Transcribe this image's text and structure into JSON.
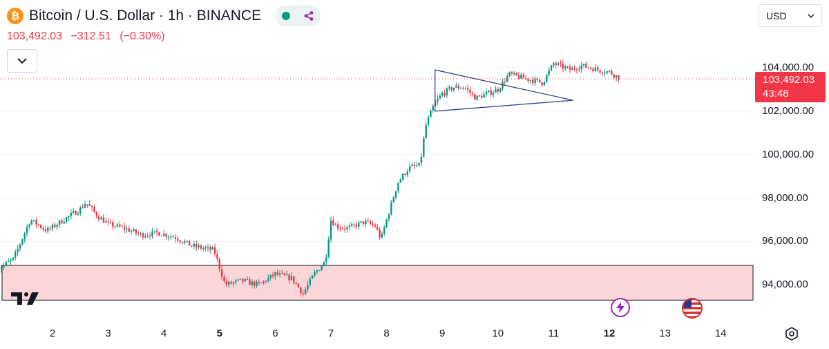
{
  "header": {
    "logo_letter": "₿",
    "title": "Bitcoin / U.S. Dollar · 1h · BINANCE",
    "price": "103,492.03",
    "change": "−312.51",
    "change_pct": "(−0.30%)"
  },
  "currency": {
    "value": "USD"
  },
  "price_tag": {
    "price": "103,492.03",
    "countdown": "43:48"
  },
  "colors": {
    "up": "#089981",
    "down": "#f23645",
    "zone_fill": "#fbd6d9",
    "accent": "#9c27b0"
  },
  "icons": [
    "bitcoin-icon",
    "chevron-down-icon",
    "tradingview-logo",
    "lightning-icon",
    "us-flag-icon",
    "settings-icon"
  ],
  "chart_data": {
    "type": "candlestick",
    "y_axis_labels": [
      "104,000.00",
      "102,000.00",
      "100,000.00",
      "98,000.00",
      "96,000.00",
      "94,000.00"
    ],
    "y_axis_values": [
      104000,
      102000,
      100000,
      98000,
      96000,
      94000
    ],
    "x_axis_labels": [
      "2",
      "3",
      "4",
      "5",
      "6",
      "7",
      "8",
      "9",
      "10",
      "11",
      "12",
      "13",
      "14"
    ],
    "x_axis_bold": [
      "5",
      "12"
    ],
    "last_price": 103492.03,
    "support_zone": {
      "low": 93300,
      "high": 94900
    },
    "triangle": {
      "top_left": 103900,
      "bottom_left": 102000,
      "apex": 102500
    },
    "path": [
      [
        1.0,
        94700
      ],
      [
        1.3,
        95200
      ],
      [
        1.6,
        97000
      ],
      [
        1.9,
        96500
      ],
      [
        2.2,
        97000
      ],
      [
        2.5,
        97500
      ],
      [
        2.6,
        97800
      ],
      [
        2.8,
        97200
      ],
      [
        3.0,
        96800
      ],
      [
        3.3,
        96600
      ],
      [
        3.6,
        96300
      ],
      [
        3.9,
        96400
      ],
      [
        4.2,
        96200
      ],
      [
        4.5,
        95800
      ],
      [
        4.9,
        95600
      ],
      [
        5.0,
        94800
      ],
      [
        5.1,
        94000
      ],
      [
        5.4,
        94200
      ],
      [
        5.7,
        94000
      ],
      [
        6.0,
        94500
      ],
      [
        6.3,
        94300
      ],
      [
        6.5,
        93600
      ],
      [
        6.7,
        94500
      ],
      [
        6.9,
        95100
      ],
      [
        7.0,
        97000
      ],
      [
        7.1,
        96700
      ],
      [
        7.3,
        96600
      ],
      [
        7.6,
        96900
      ],
      [
        7.8,
        96700
      ],
      [
        7.9,
        96100
      ],
      [
        8.0,
        97000
      ],
      [
        8.2,
        98700
      ],
      [
        8.4,
        99400
      ],
      [
        8.6,
        99500
      ],
      [
        8.7,
        101300
      ],
      [
        8.85,
        102300
      ],
      [
        9.0,
        102800
      ],
      [
        9.2,
        103100
      ],
      [
        9.4,
        103100
      ],
      [
        9.6,
        102600
      ],
      [
        9.8,
        102800
      ],
      [
        10.0,
        103000
      ],
      [
        10.2,
        103700
      ],
      [
        10.5,
        103500
      ],
      [
        10.8,
        103300
      ],
      [
        11.0,
        104200
      ],
      [
        11.3,
        103900
      ],
      [
        11.5,
        104100
      ],
      [
        11.8,
        103900
      ],
      [
        12.0,
        103800
      ],
      [
        12.2,
        103500
      ]
    ]
  }
}
